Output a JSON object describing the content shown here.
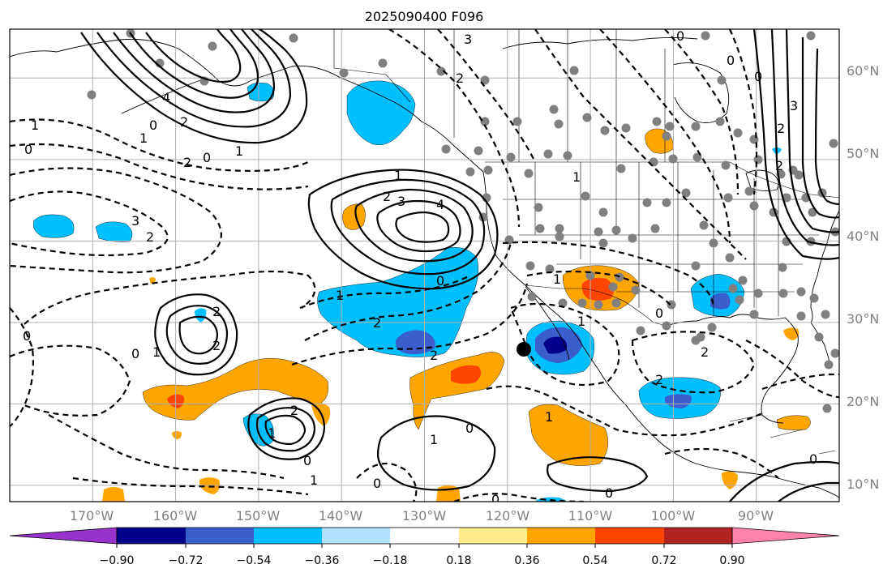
{
  "title": "2025090400 F096",
  "colors": {
    "cb_neg_extreme": "#9932cc",
    "cb_neg_090": "#00008b",
    "cb_neg_072": "#3a5fcd",
    "cb_neg_054": "#00bfff",
    "cb_neg_036": "#b0e2ff",
    "cb_zero": "#ffffff",
    "cb_pos_018": "#ffec8b",
    "cb_pos_036": "#ffa500",
    "cb_pos_054": "#ff4500",
    "cb_pos_072": "#b22222",
    "cb_pos_extreme": "#ff82ab",
    "station": "#808080",
    "marker": "#000000"
  },
  "map": {
    "lon_labels": [
      "170°W",
      "160°W",
      "150°W",
      "140°W",
      "130°W",
      "120°W",
      "110°W",
      "100°W",
      "90°W"
    ],
    "lat_labels": [
      "60°N",
      "50°N",
      "40°N",
      "30°N",
      "20°N",
      "10°N"
    ],
    "lon_range": [
      -180,
      -80
    ],
    "lat_range": [
      8,
      66
    ],
    "grid": true
  },
  "contour_labels": {
    "c1": "3",
    "c2": "0",
    "c3": "2",
    "c4": "1",
    "c5": "0",
    "c6": "2",
    "c7": "4",
    "c8": "2",
    "c9": "0",
    "c10": "1",
    "c11": "0",
    "c12": "2",
    "c13": "3",
    "c14": "2",
    "c15": "1",
    "c16": "2",
    "c17": "3",
    "c18": "4",
    "c19": "1",
    "c20": "0",
    "c21": "1",
    "c22": "2",
    "c23": "2",
    "c24": "2",
    "c25": "0",
    "c26": "1",
    "c27": "2",
    "c28": "2",
    "c29": "0",
    "c30": "1",
    "c31": "1",
    "c32": "0",
    "c33": "1",
    "c34": "0",
    "c35": "0",
    "c36": "1",
    "c37": "2",
    "c38": "1",
    "c39": "0",
    "c40": "0",
    "c41": "0",
    "c42": "0",
    "c43": "2",
    "c44": "1",
    "c45": "3",
    "c46": "2",
    "c47": "0",
    "c48": "1",
    "c49": "0"
  },
  "colorbar": {
    "tick_labels": [
      "−0.90",
      "−0.72",
      "−0.54",
      "−0.36",
      "−0.18",
      "0.18",
      "0.36",
      "0.54",
      "0.72",
      "0.90"
    ],
    "extend": "both"
  }
}
